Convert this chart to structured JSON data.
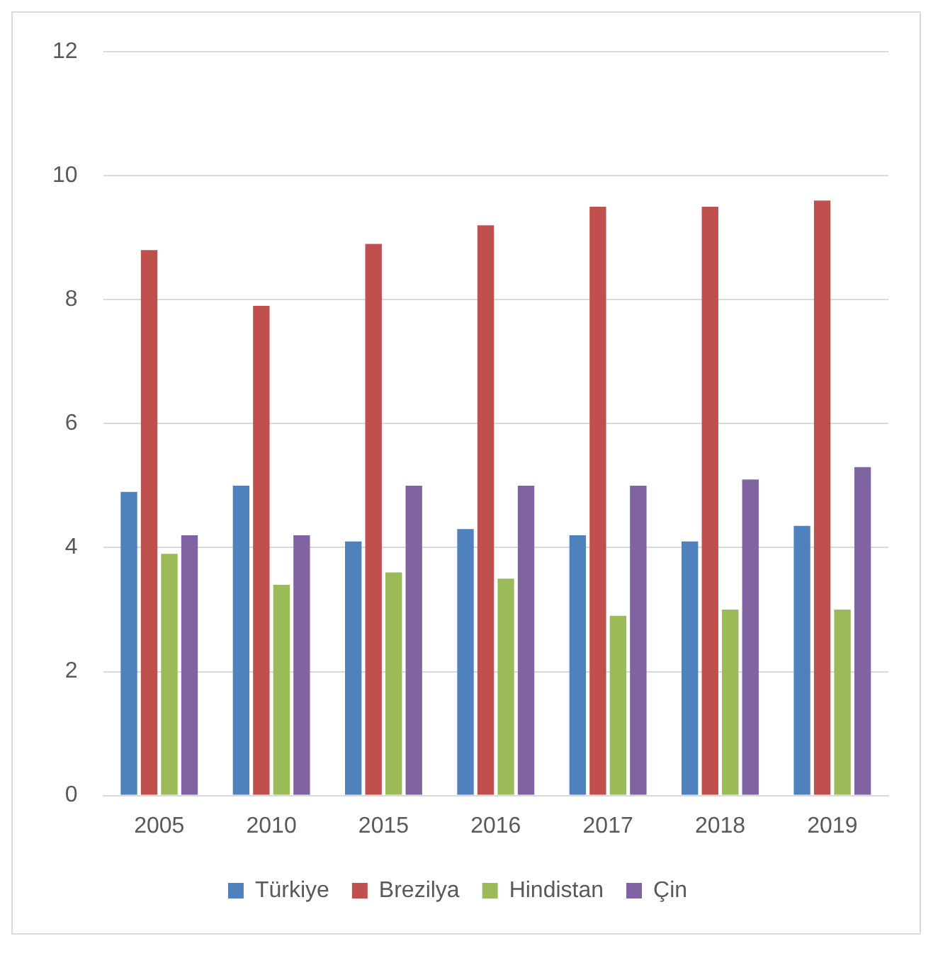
{
  "chart_data": {
    "type": "bar",
    "categories": [
      "2005",
      "2010",
      "2015",
      "2016",
      "2017",
      "2018",
      "2019"
    ],
    "series": [
      {
        "name": "Türkiye",
        "color": "#4f81bd",
        "values": [
          4.9,
          5.0,
          4.1,
          4.3,
          4.2,
          4.1,
          4.35
        ]
      },
      {
        "name": "Brezilya",
        "color": "#c0504d",
        "values": [
          8.8,
          7.9,
          8.9,
          9.2,
          9.5,
          9.5,
          9.6
        ]
      },
      {
        "name": "Hindistan",
        "color": "#9bbb59",
        "values": [
          3.9,
          3.4,
          3.6,
          3.5,
          2.9,
          3.0,
          3.0
        ]
      },
      {
        "name": "Çin",
        "color": "#8064a2",
        "values": [
          4.2,
          4.2,
          5.0,
          5.0,
          5.0,
          5.1,
          5.3
        ]
      }
    ],
    "ylim": [
      0,
      12
    ],
    "yticks": [
      0,
      2,
      4,
      6,
      8,
      10,
      12
    ],
    "grid": "y",
    "legend": "bottom"
  }
}
